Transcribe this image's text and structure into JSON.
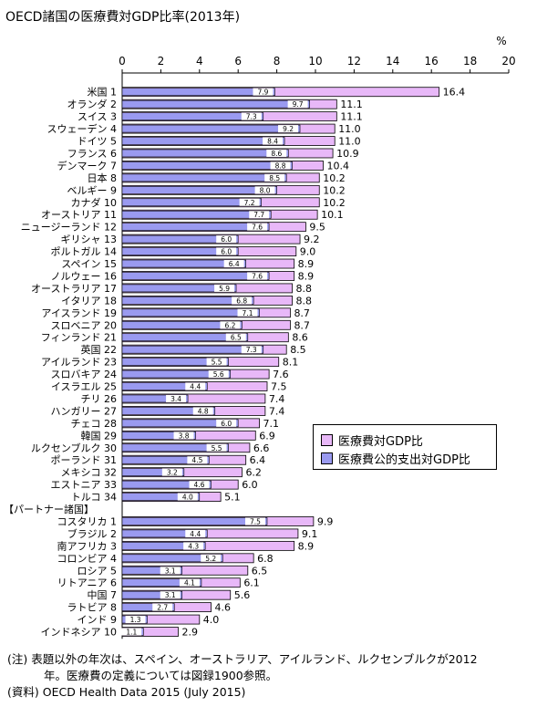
{
  "title": "OECD諸国の医療費対GDP比率(2013年)",
  "legend": {
    "total": "医療費対GDP比",
    "public": "医療費公的支出対GDP比"
  },
  "colors": {
    "total": "#e8b8f8",
    "public": "#9a9af0"
  },
  "notes": {
    "note1": "(注) 表題以外の年次は、スペイン、オーストラリア、アイルランド、ルクセンブルクが2012",
    "note2": "年。医療費の定義については図録1900参照。",
    "source": "(資料) OECD Health Data  2015 (July 2015)"
  },
  "chart_data": {
    "type": "bar",
    "orientation": "horizontal",
    "x_unit": "%",
    "xlim": [
      0,
      20
    ],
    "x_ticks": [
      0,
      2,
      4,
      6,
      8,
      10,
      12,
      14,
      16,
      18,
      20
    ],
    "group_header": "【パートナー諸国】",
    "oecd": [
      {
        "label": "米国 1",
        "total": 16.4,
        "public": 7.9
      },
      {
        "label": "オランダ 2",
        "total": 11.1,
        "public": 9.7
      },
      {
        "label": "スイス 3",
        "total": 11.1,
        "public": 7.3
      },
      {
        "label": "スウェーデン 4",
        "total": 11.0,
        "public": 9.2
      },
      {
        "label": "ドイツ 5",
        "total": 11.0,
        "public": 8.4
      },
      {
        "label": "フランス 6",
        "total": 10.9,
        "public": 8.6
      },
      {
        "label": "デンマーク 7",
        "total": 10.4,
        "public": 8.8
      },
      {
        "label": "日本 8",
        "total": 10.2,
        "public": 8.5
      },
      {
        "label": "ベルギー 9",
        "total": 10.2,
        "public": 8.0
      },
      {
        "label": "カナダ 10",
        "total": 10.2,
        "public": 7.2
      },
      {
        "label": "オーストリア 11",
        "total": 10.1,
        "public": 7.7
      },
      {
        "label": "ニュージーランド 12",
        "total": 9.5,
        "public": 7.6
      },
      {
        "label": "ギリシャ 13",
        "total": 9.2,
        "public": 6.0
      },
      {
        "label": "ポルトガル 14",
        "total": 9.0,
        "public": 6.0
      },
      {
        "label": "スペイン 15",
        "total": 8.9,
        "public": 6.4
      },
      {
        "label": "ノルウェー 16",
        "total": 8.9,
        "public": 7.6
      },
      {
        "label": "オーストラリア 17",
        "total": 8.8,
        "public": 5.9
      },
      {
        "label": "イタリア 18",
        "total": 8.8,
        "public": 6.8
      },
      {
        "label": "アイスランド 19",
        "total": 8.7,
        "public": 7.1
      },
      {
        "label": "スロベニア 20",
        "total": 8.7,
        "public": 6.2
      },
      {
        "label": "フィンランド 21",
        "total": 8.6,
        "public": 6.5
      },
      {
        "label": "英国 22",
        "total": 8.5,
        "public": 7.3
      },
      {
        "label": "アイルランド 23",
        "total": 8.1,
        "public": 5.5
      },
      {
        "label": "スロバキア 24",
        "total": 7.6,
        "public": 5.6
      },
      {
        "label": "イスラエル 25",
        "total": 7.5,
        "public": 4.4
      },
      {
        "label": "チリ 26",
        "total": 7.4,
        "public": 3.4
      },
      {
        "label": "ハンガリー 27",
        "total": 7.4,
        "public": 4.8
      },
      {
        "label": "チェコ 28",
        "total": 7.1,
        "public": 6.0
      },
      {
        "label": "韓国 29",
        "total": 6.9,
        "public": 3.8
      },
      {
        "label": "ルクセンブルク 30",
        "total": 6.6,
        "public": 5.5
      },
      {
        "label": "ポーランド 31",
        "total": 6.4,
        "public": 4.5
      },
      {
        "label": "メキシコ 32",
        "total": 6.2,
        "public": 3.2
      },
      {
        "label": "エストニア 33",
        "total": 6.0,
        "public": 4.6
      },
      {
        "label": "トルコ 34",
        "total": 5.1,
        "public": 4.0
      }
    ],
    "partners": [
      {
        "label": "コスタリカ 1",
        "total": 9.9,
        "public": 7.5
      },
      {
        "label": "ブラジル 2",
        "total": 9.1,
        "public": 4.4
      },
      {
        "label": "南アフリカ 3",
        "total": 8.9,
        "public": 4.3
      },
      {
        "label": "コロンビア 4",
        "total": 6.8,
        "public": 5.2
      },
      {
        "label": "ロシア 5",
        "total": 6.5,
        "public": 3.1
      },
      {
        "label": "リトアニア 6",
        "total": 6.1,
        "public": 4.1
      },
      {
        "label": "中国 7",
        "total": 5.6,
        "public": 3.1
      },
      {
        "label": "ラトビア 8",
        "total": 4.6,
        "public": 2.7
      },
      {
        "label": "インド 9",
        "total": 4.0,
        "public": 1.3
      },
      {
        "label": "インドネシア 10",
        "total": 2.9,
        "public": 1.1
      }
    ]
  }
}
